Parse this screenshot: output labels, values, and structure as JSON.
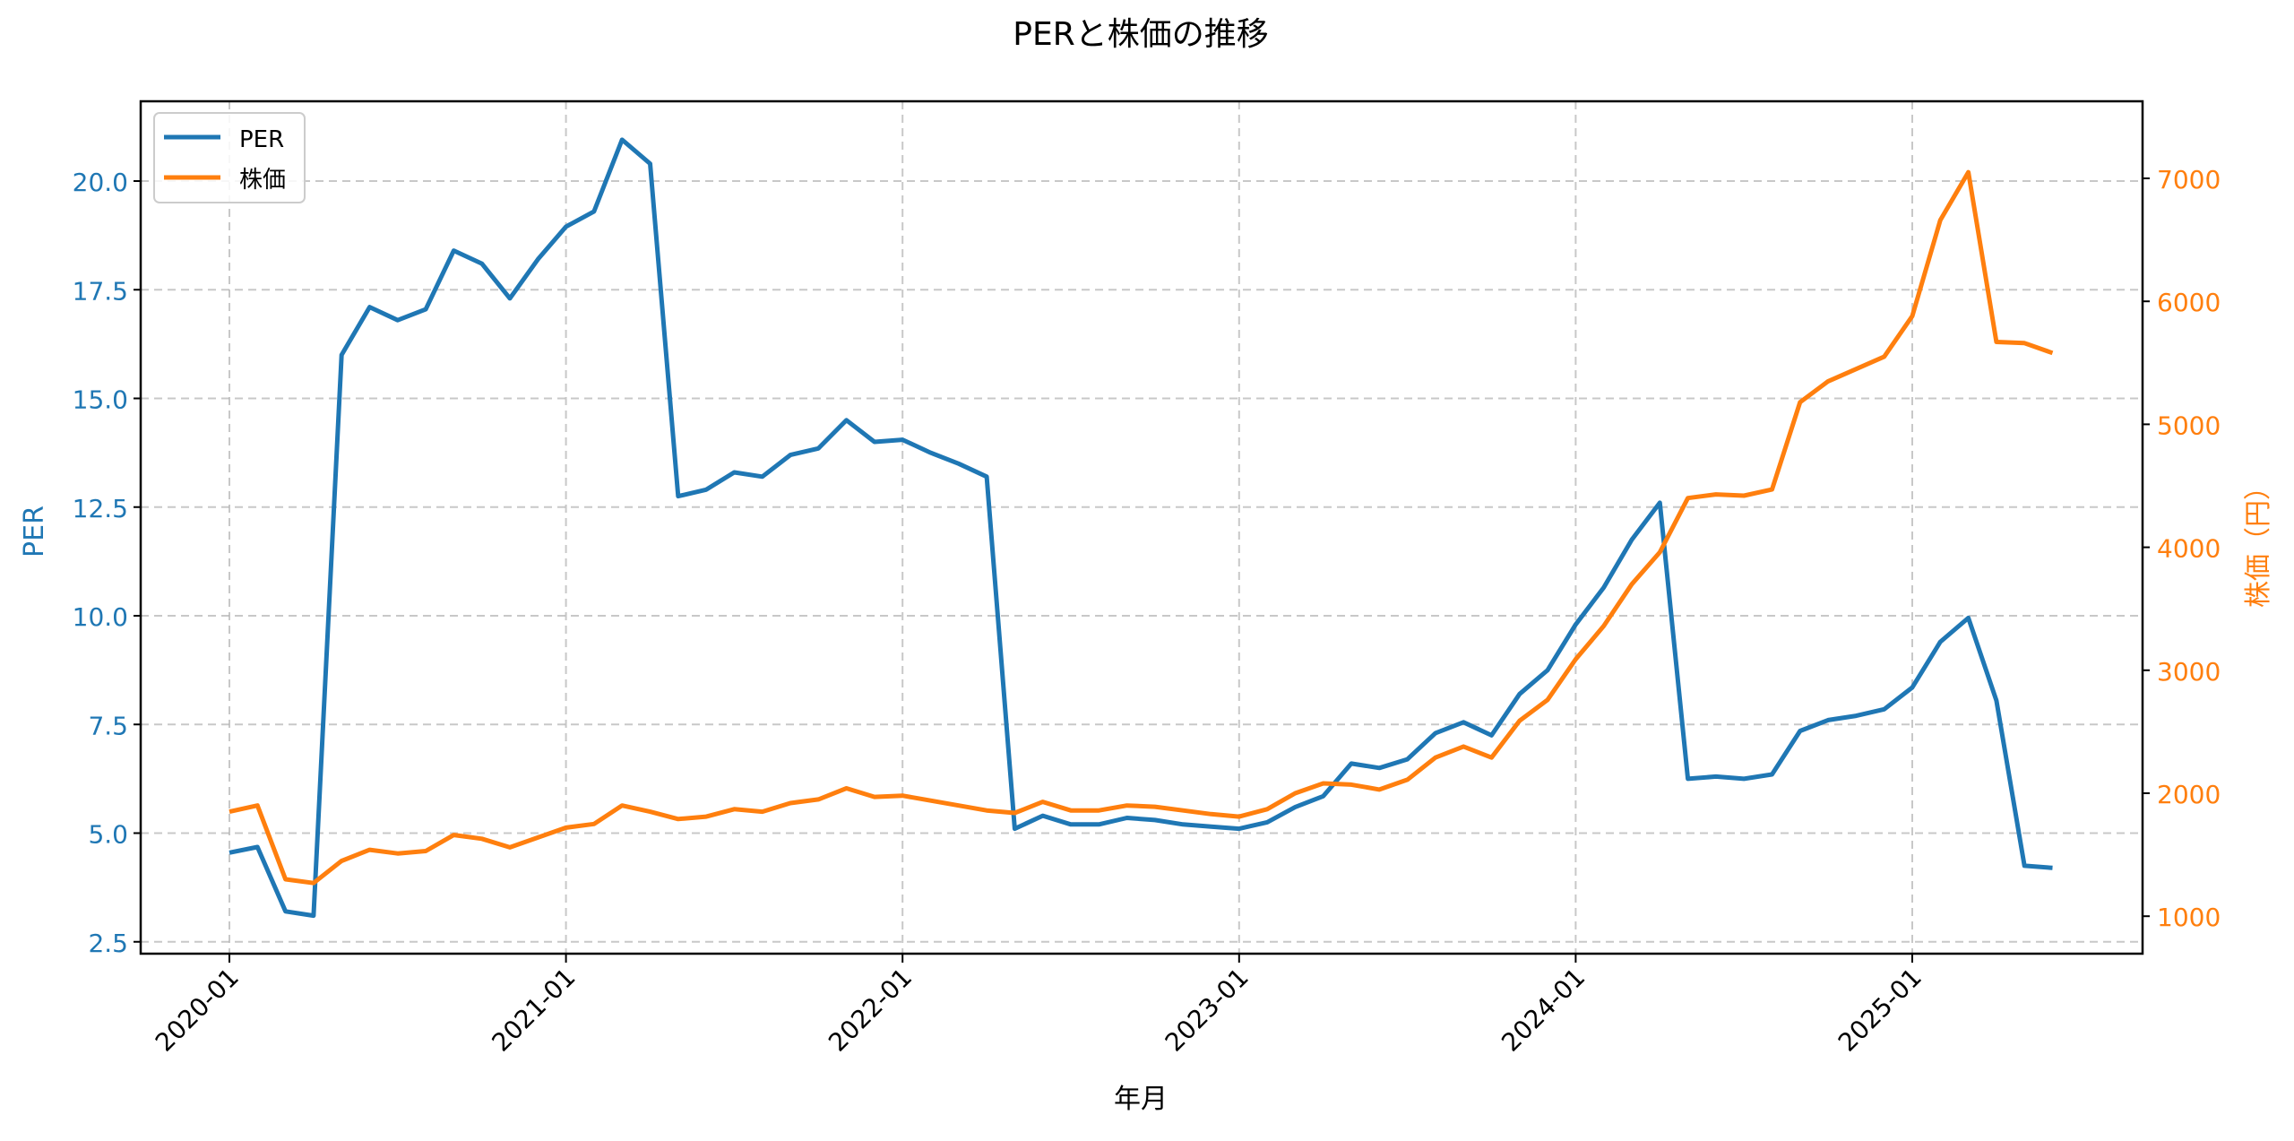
{
  "chart_data": {
    "type": "line",
    "title": "PERと株価の推移",
    "xlabel": "年月",
    "ylabel": "PER",
    "ylabel_right": "株価（円）",
    "x_tick_labels": [
      "2020-01",
      "2021-01",
      "2022-01",
      "2023-01",
      "2024-01",
      "2025-01"
    ],
    "y_ticks_left": [
      "2.5",
      "5.0",
      "7.5",
      "10.0",
      "12.5",
      "15.0",
      "17.5",
      "20.0"
    ],
    "y_ticks_right": [
      "1000",
      "2000",
      "3000",
      "4000",
      "5000",
      "6000",
      "7000"
    ],
    "ylim_left": [
      2.0,
      21.9
    ],
    "ylim_right": [
      690,
      7570
    ],
    "grid": true,
    "legend_position": "upper left",
    "x": [
      "2020-01",
      "2020-02",
      "2020-03",
      "2020-04",
      "2020-05",
      "2020-06",
      "2020-07",
      "2020-08",
      "2020-09",
      "2020-10",
      "2020-11",
      "2020-12",
      "2021-01",
      "2021-02",
      "2021-03",
      "2021-04",
      "2021-05",
      "2021-06",
      "2021-07",
      "2021-08",
      "2021-09",
      "2021-10",
      "2021-11",
      "2021-12",
      "2022-01",
      "2022-02",
      "2022-03",
      "2022-04",
      "2022-05",
      "2022-06",
      "2022-07",
      "2022-08",
      "2022-09",
      "2022-10",
      "2022-11",
      "2022-12",
      "2023-01",
      "2023-02",
      "2023-03",
      "2023-04",
      "2023-05",
      "2023-06",
      "2023-07",
      "2023-08",
      "2023-09",
      "2023-10",
      "2023-11",
      "2023-12",
      "2024-01",
      "2024-02",
      "2024-03",
      "2024-04",
      "2024-05",
      "2024-06",
      "2024-07",
      "2024-08",
      "2024-09",
      "2024-10",
      "2024-11",
      "2024-12",
      "2025-01",
      "2025-02",
      "2025-03",
      "2025-04",
      "2025-05",
      "2025-06"
    ],
    "series": [
      {
        "name": "PER",
        "axis": "left",
        "color": "#1f77b4",
        "values": [
          4.55,
          4.68,
          3.2,
          3.1,
          16.0,
          17.1,
          16.8,
          17.05,
          18.4,
          18.1,
          17.3,
          18.2,
          18.95,
          19.3,
          20.95,
          20.4,
          12.75,
          12.9,
          13.3,
          13.2,
          13.7,
          13.85,
          14.5,
          14.0,
          14.05,
          13.75,
          13.5,
          13.2,
          5.1,
          5.4,
          5.2,
          5.2,
          5.35,
          5.3,
          5.2,
          5.15,
          5.1,
          5.25,
          5.6,
          5.85,
          6.6,
          6.5,
          6.7,
          7.3,
          7.55,
          7.25,
          8.2,
          8.75,
          9.8,
          10.65,
          11.75,
          12.6,
          6.25,
          6.3,
          6.25,
          6.35,
          7.35,
          7.6,
          7.7,
          7.85,
          8.35,
          9.4,
          9.95,
          8.05,
          4.25,
          4.2
        ]
      },
      {
        "name": "株価",
        "axis": "right",
        "color": "#ff7f0e",
        "values": [
          1850,
          1900,
          1300,
          1270,
          1450,
          1540,
          1510,
          1530,
          1660,
          1630,
          1560,
          1640,
          1720,
          1750,
          1900,
          1850,
          1790,
          1810,
          1870,
          1850,
          1920,
          1950,
          2040,
          1970,
          1980,
          1940,
          1900,
          1860,
          1840,
          1930,
          1860,
          1860,
          1900,
          1890,
          1860,
          1830,
          1810,
          1870,
          2000,
          2080,
          2070,
          2030,
          2110,
          2290,
          2380,
          2290,
          2590,
          2760,
          3090,
          3360,
          3700,
          3960,
          4400,
          4430,
          4420,
          4470,
          5180,
          5350,
          5450,
          5550,
          5880,
          6660,
          7050,
          5670,
          5660,
          5580
        ]
      }
    ]
  },
  "legend": {
    "items": [
      {
        "label": "PER"
      },
      {
        "label": "株価"
      }
    ]
  }
}
